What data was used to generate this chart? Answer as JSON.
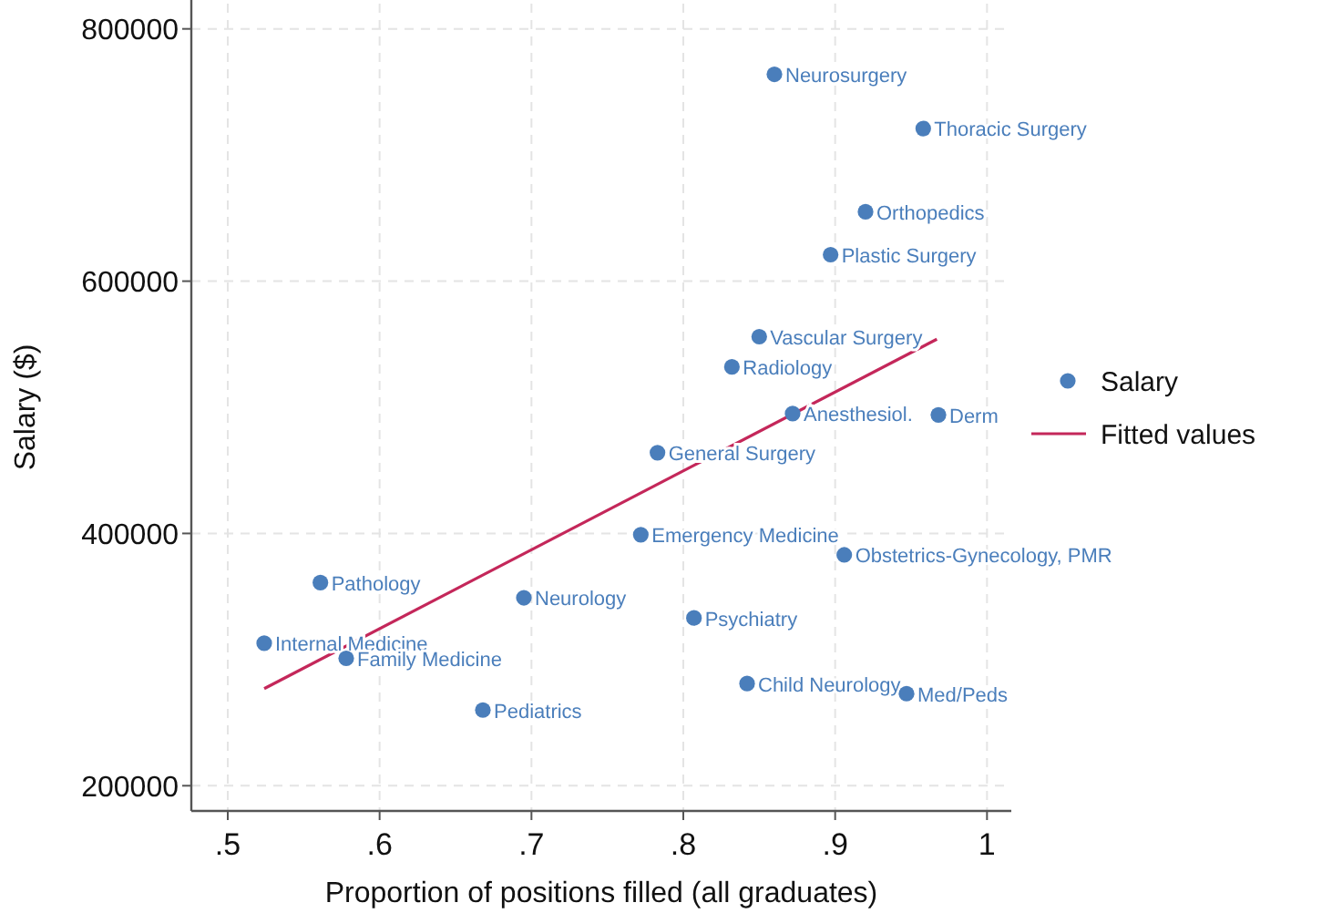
{
  "chart_data": {
    "type": "scatter",
    "xlabel": "Proportion of positions filled (all graduates)",
    "ylabel": "Salary ($)",
    "xlim": [
      0.476,
      1.016
    ],
    "ylim": [
      180000,
      820000
    ],
    "xticks": [
      {
        "value": 0.5,
        "label": ".5"
      },
      {
        "value": 0.6,
        "label": ".6"
      },
      {
        "value": 0.7,
        "label": ".7"
      },
      {
        "value": 0.8,
        "label": ".8"
      },
      {
        "value": 0.9,
        "label": ".9"
      },
      1
    ],
    "yticks": [
      200000,
      400000,
      600000,
      800000
    ],
    "grid": true,
    "legend": "right",
    "series": [
      {
        "name": "Salary",
        "marker": "circle",
        "color": "#4a7ebb",
        "x": [
          0.86,
          0.958,
          0.92,
          0.897,
          0.85,
          0.832,
          0.872,
          0.968,
          0.783,
          0.772,
          0.906,
          0.561,
          0.695,
          0.807,
          0.524,
          0.578,
          0.668,
          0.842,
          0.947
        ],
        "values": [
          764000,
          721000,
          655000,
          621000,
          556000,
          532000,
          495000,
          494000,
          464000,
          399000,
          383000,
          361000,
          349000,
          333000,
          313000,
          301000,
          260000,
          281000,
          273000
        ]
      },
      {
        "name": "Fitted values",
        "type": "line",
        "color": "#c4275a",
        "line_style": "solid",
        "marker": "none",
        "x": [
          0.524,
          0.967
        ],
        "values": [
          277000,
          554000
        ]
      }
    ],
    "annotations": [
      {
        "text": "Neurosurgery",
        "x": 0.86,
        "y": 764000
      },
      {
        "text": "Thoracic Surgery",
        "x": 0.958,
        "y": 721000
      },
      {
        "text": "Orthopedics",
        "x": 0.92,
        "y": 655000
      },
      {
        "text": "Plastic Surgery",
        "x": 0.897,
        "y": 621000
      },
      {
        "text": "Vascular Surgery",
        "x": 0.85,
        "y": 556000
      },
      {
        "text": "Radiology",
        "x": 0.832,
        "y": 532000
      },
      {
        "text": "Anesthesiol.",
        "x": 0.872,
        "y": 495000
      },
      {
        "text": "Derm",
        "x": 0.968,
        "y": 494000
      },
      {
        "text": "General Surgery",
        "x": 0.783,
        "y": 464000
      },
      {
        "text": "Emergency Medicine",
        "x": 0.772,
        "y": 399000
      },
      {
        "text": "Obstetrics-Gynecology, PMR",
        "x": 0.906,
        "y": 383000
      },
      {
        "text": "Pathology",
        "x": 0.561,
        "y": 361000
      },
      {
        "text": "Neurology",
        "x": 0.695,
        "y": 349000
      },
      {
        "text": "Psychiatry",
        "x": 0.807,
        "y": 333000
      },
      {
        "text": "Internal Medicine",
        "x": 0.524,
        "y": 313000
      },
      {
        "text": "Family Medicine",
        "x": 0.578,
        "y": 301000
      },
      {
        "text": "Pediatrics",
        "x": 0.668,
        "y": 260000
      },
      {
        "text": "Child Neurology",
        "x": 0.842,
        "y": 281000
      },
      {
        "text": "Med/Peds",
        "x": 0.947,
        "y": 273000
      }
    ]
  }
}
